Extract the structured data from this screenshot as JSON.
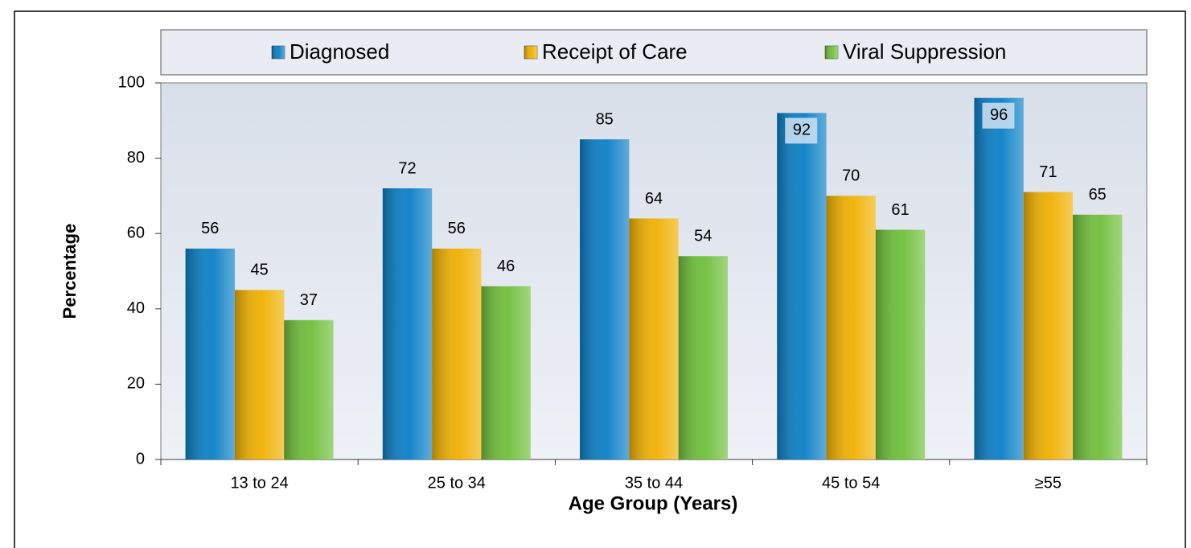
{
  "chart_data": {
    "type": "bar",
    "x_label": "Age Group (Years)",
    "y_label": "Percentage",
    "categories": [
      "13 to 24",
      "25 to 34",
      "35 to 44",
      "45 to 54",
      "≥55"
    ],
    "series": [
      {
        "name": "Diagnosed",
        "color": "#0a7fc6",
        "values": [
          56,
          72,
          85,
          92,
          96
        ]
      },
      {
        "name": "Receipt of Care",
        "color": "#f0b000",
        "values": [
          45,
          56,
          64,
          70,
          71
        ]
      },
      {
        "name": "Viral Suppression",
        "color": "#6fbf3a",
        "values": [
          37,
          46,
          54,
          61,
          65
        ]
      }
    ],
    "ylim": [
      0,
      100
    ],
    "yticks": [
      0,
      20,
      40,
      60,
      80,
      100
    ],
    "legend": "top"
  }
}
